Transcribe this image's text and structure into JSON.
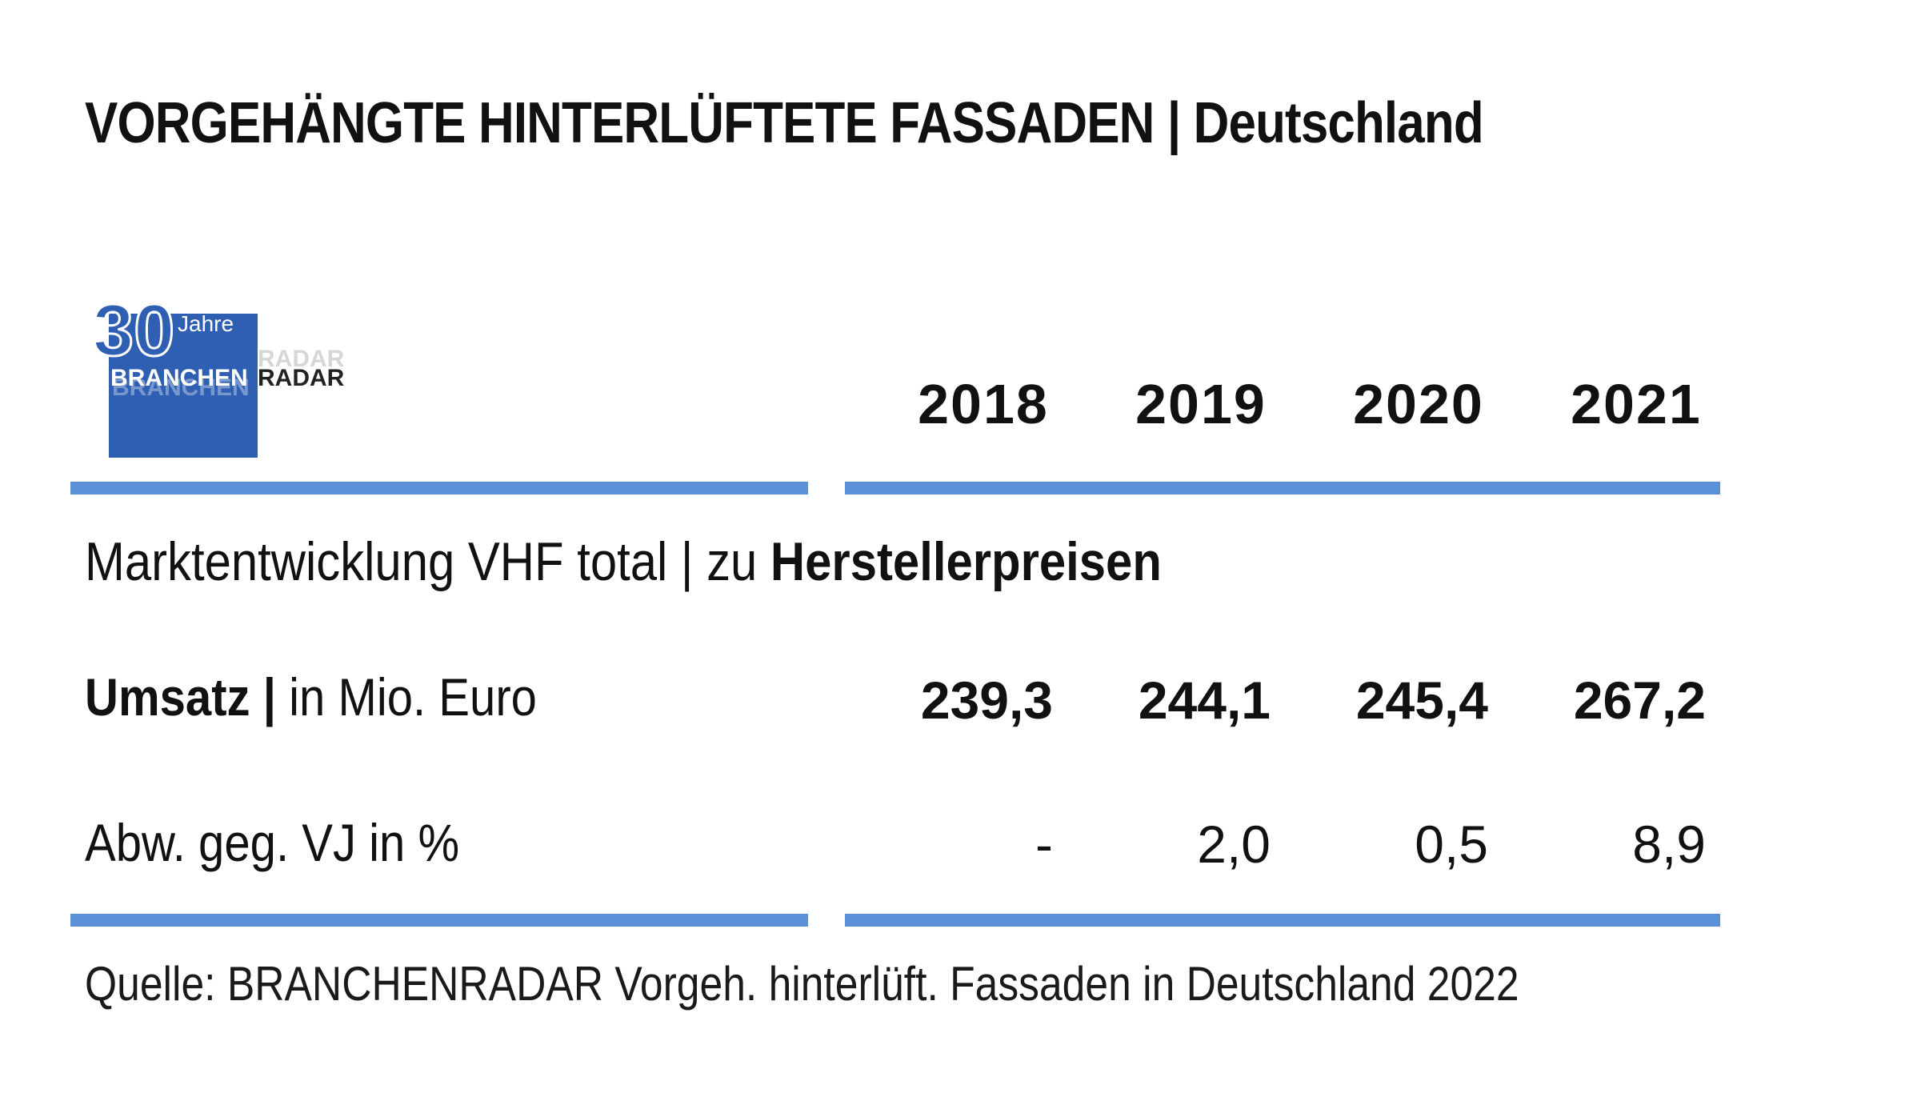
{
  "title": "VORGEHÄNGTE HINTERLÜFTETE FASSADEN | Deutschland",
  "logo": {
    "number": "30",
    "jahre": "Jahre",
    "brand_part1": "BRANCHEN",
    "brand_part2": "RADAR",
    "brand_color": "#2f5fb3"
  },
  "table": {
    "years": [
      "2018",
      "2019",
      "2020",
      "2021"
    ],
    "subtitle_regular": "Marktentwicklung VHF total | zu ",
    "subtitle_bold": "Herstellerpreisen",
    "rows": [
      {
        "label_bold": "Umsatz | ",
        "label_regular": "in Mio. Euro",
        "values": [
          "239,3",
          "244,1",
          "245,4",
          "267,2"
        ]
      },
      {
        "label_bold": "",
        "label_regular": "Abw. geg. VJ in %",
        "values": [
          "-",
          "2,0",
          "0,5",
          "8,9"
        ]
      }
    ]
  },
  "source": "Quelle: BRANCHENRADAR Vorgeh. hinterlüft. Fassaden in Deutschland 2022",
  "colors": {
    "rule": "#5b8fd6",
    "text": "#111111"
  }
}
